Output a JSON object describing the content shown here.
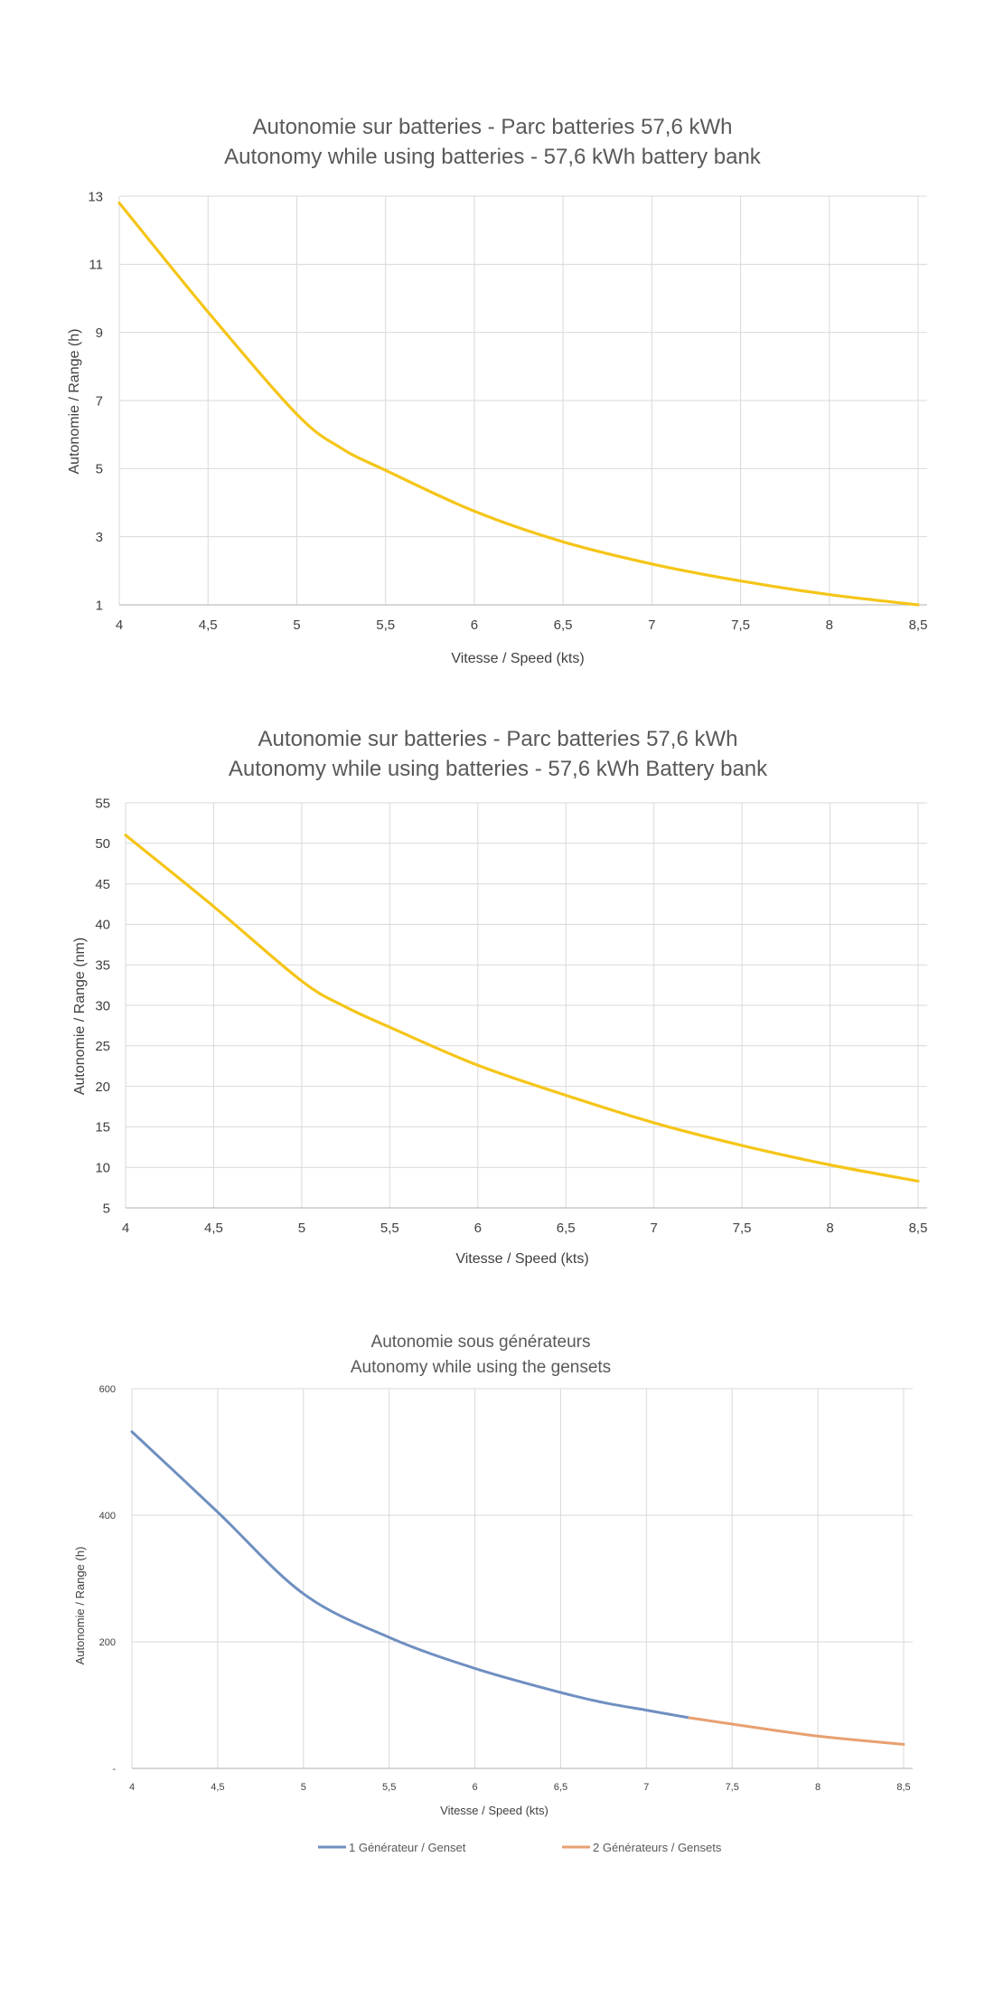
{
  "chart_data": [
    {
      "type": "line",
      "title": "Autonomie sur batteries - Parc batteries 57,6 kWh",
      "subtitle": "Autonomy while using batteries - 57,6 kWh battery bank",
      "xlabel": "Vitesse / Speed (kts)",
      "ylabel": "Autonomie / Range (h)",
      "x": [
        4,
        4.5,
        5,
        5.25,
        5.5,
        6,
        6.5,
        7,
        7.5,
        8,
        8.5
      ],
      "xticks": [
        "4",
        "4,5",
        "5",
        "5,5",
        "6",
        "6,5",
        "7",
        "7,5",
        "8",
        "8,5"
      ],
      "yticks": [
        "1",
        "3",
        "5",
        "7",
        "9",
        "11",
        "13"
      ],
      "xlim": [
        4,
        8.5
      ],
      "ylim": [
        1,
        13
      ],
      "grid": true,
      "series": [
        {
          "name": "Autonomie",
          "color": "#f5c518",
          "values": [
            12.8,
            9.6,
            6.6,
            5.6,
            4.95,
            3.75,
            2.85,
            2.2,
            1.7,
            1.3,
            1.0
          ]
        }
      ]
    },
    {
      "type": "line",
      "title": "Autonomie sur batteries - Parc batteries 57,6 kWh",
      "subtitle": "Autonomy while using batteries - 57,6 kWh Battery bank",
      "xlabel": "Vitesse / Speed (kts)",
      "ylabel": "Autonomie / Range (nm)",
      "x": [
        4,
        4.5,
        5,
        5.25,
        5.5,
        6,
        6.5,
        7,
        7.5,
        8,
        8.5
      ],
      "xticks": [
        "4",
        "4,5",
        "5",
        "5,5",
        "6",
        "6,5",
        "7",
        "7,5",
        "8",
        "8,5"
      ],
      "yticks": [
        "5",
        "10",
        "15",
        "20",
        "25",
        "30",
        "35",
        "40",
        "45",
        "50",
        "55"
      ],
      "xlim": [
        4,
        8.5
      ],
      "ylim": [
        5,
        55
      ],
      "grid": true,
      "series": [
        {
          "name": "Autonomie",
          "color": "#f5c518",
          "values": [
            51,
            42.2,
            33,
            29.8,
            27.3,
            22.6,
            18.9,
            15.5,
            12.7,
            10.3,
            8.3
          ]
        }
      ]
    },
    {
      "type": "line",
      "title": "Autonomie sous générateurs",
      "subtitle": "Autonomy while using the gensets",
      "xlabel": "Vitesse / Speed (kts)",
      "ylabel": "Autonomie / Range (h)",
      "xticks": [
        "4",
        "4,5",
        "5",
        "5,5",
        "6",
        "6,5",
        "7",
        "7,5",
        "8",
        "8,5"
      ],
      "yticks": [
        "-",
        "200",
        "400",
        "600"
      ],
      "xlim": [
        4,
        8.5
      ],
      "ylim": [
        0,
        600
      ],
      "grid": true,
      "legend_position": "bottom",
      "series": [
        {
          "name": "1 Générateur / Genset",
          "color": "#6f8fc0",
          "x": [
            4,
            4.5,
            5,
            5.5,
            6,
            6.5,
            6.75,
            7,
            7.25
          ],
          "values": [
            532,
            405,
            276,
            207,
            158,
            120,
            104,
            92,
            80
          ]
        },
        {
          "name": "2 Générateurs / Gensets",
          "color": "#e8a070",
          "x": [
            7.25,
            7.5,
            8,
            8.5
          ],
          "values": [
            80,
            70,
            51,
            38
          ]
        }
      ]
    }
  ]
}
